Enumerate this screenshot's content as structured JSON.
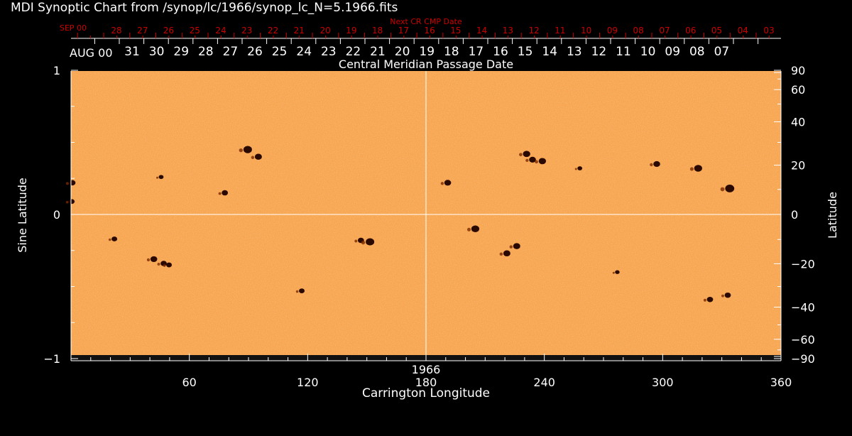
{
  "title": "MDI Synoptic Chart from /synop/lc/1966/synop_lc_N=5.1966.fits",
  "colors": {
    "background": "#000000",
    "map": "#f7a550",
    "spot": "#2a0a00",
    "axis": "#ffffff",
    "next_cr": "#cc0000"
  },
  "chart_data": {
    "type": "heatmap",
    "xlabel": "Carrington Longitude",
    "ylabel": "Sine Latitude",
    "ylabel_right": "Latitude",
    "top_axis_label": "Central Meridian Passage Date",
    "next_cr_label": "Next CR CMP Date",
    "rotation_label": "1966",
    "xlim": [
      0,
      360
    ],
    "ylim": [
      -1,
      1
    ],
    "x_ticks": [
      "60",
      "120",
      "180",
      "240",
      "300",
      "360"
    ],
    "x_tick_values": [
      60,
      120,
      180,
      240,
      300,
      360
    ],
    "y_ticks": [
      "1",
      "0",
      "−1"
    ],
    "y_tick_values": [
      1,
      0,
      -1
    ],
    "lat_ticks": [
      "90",
      "60",
      "40",
      "20",
      "0",
      "−20",
      "−40",
      "−60",
      "−90"
    ],
    "lat_tick_values": [
      90,
      60,
      40,
      20,
      0,
      -20,
      -40,
      -60,
      -90
    ],
    "cmp_month_label": "AUG 00",
    "cmp_dates": [
      "31",
      "30",
      "29",
      "28",
      "27",
      "26",
      "25",
      "24",
      "23",
      "22",
      "21",
      "20",
      "19",
      "18",
      "17",
      "16",
      "15",
      "14",
      "13",
      "12",
      "11",
      "10",
      "09",
      "08",
      "07"
    ],
    "next_cr_month_label": "SEP 00",
    "next_cr_dates": [
      "28",
      "27",
      "26",
      "25",
      "24",
      "23",
      "22",
      "21",
      "20",
      "19",
      "18",
      "17",
      "16",
      "15",
      "14",
      "13",
      "12",
      "11",
      "10",
      "09",
      "08",
      "07",
      "06",
      "05",
      "04",
      "03"
    ],
    "grid": "lines at longitude 180 and sine latitude 0",
    "spots": [
      {
        "lon": 89.6,
        "sinlat": 0.45,
        "size": 2
      },
      {
        "lon": 95,
        "sinlat": 0.4,
        "size": 1.5
      },
      {
        "lon": 45.7,
        "sinlat": 0.26,
        "size": 0.7
      },
      {
        "lon": 0.7,
        "sinlat": 0.22,
        "size": 1.2
      },
      {
        "lon": 0.4,
        "sinlat": 0.09,
        "size": 1
      },
      {
        "lon": 78,
        "sinlat": 0.15,
        "size": 1.2
      },
      {
        "lon": 22,
        "sinlat": -0.17,
        "size": 1
      },
      {
        "lon": 42,
        "sinlat": -0.31,
        "size": 1.4
      },
      {
        "lon": 47,
        "sinlat": -0.34,
        "size": 1.2
      },
      {
        "lon": 49.7,
        "sinlat": -0.35,
        "size": 1
      },
      {
        "lon": 117,
        "sinlat": -0.53,
        "size": 1
      },
      {
        "lon": 147,
        "sinlat": -0.18,
        "size": 1.2
      },
      {
        "lon": 151.6,
        "sinlat": -0.19,
        "size": 2
      },
      {
        "lon": 191,
        "sinlat": 0.22,
        "size": 1.4
      },
      {
        "lon": 205,
        "sinlat": -0.1,
        "size": 1.8
      },
      {
        "lon": 221,
        "sinlat": -0.27,
        "size": 1.5
      },
      {
        "lon": 226,
        "sinlat": -0.22,
        "size": 1.5
      },
      {
        "lon": 231,
        "sinlat": 0.42,
        "size": 1.6
      },
      {
        "lon": 234,
        "sinlat": 0.38,
        "size": 1.4
      },
      {
        "lon": 239,
        "sinlat": 0.37,
        "size": 1.6
      },
      {
        "lon": 258,
        "sinlat": 0.32,
        "size": 0.7
      },
      {
        "lon": 297,
        "sinlat": 0.35,
        "size": 1.4
      },
      {
        "lon": 318,
        "sinlat": 0.32,
        "size": 1.8
      },
      {
        "lon": 334,
        "sinlat": 0.18,
        "size": 2.2
      },
      {
        "lon": 333,
        "sinlat": -0.56,
        "size": 1.2
      },
      {
        "lon": 324,
        "sinlat": -0.59,
        "size": 1.2
      },
      {
        "lon": 277,
        "sinlat": -0.4,
        "size": 0.6
      }
    ]
  }
}
